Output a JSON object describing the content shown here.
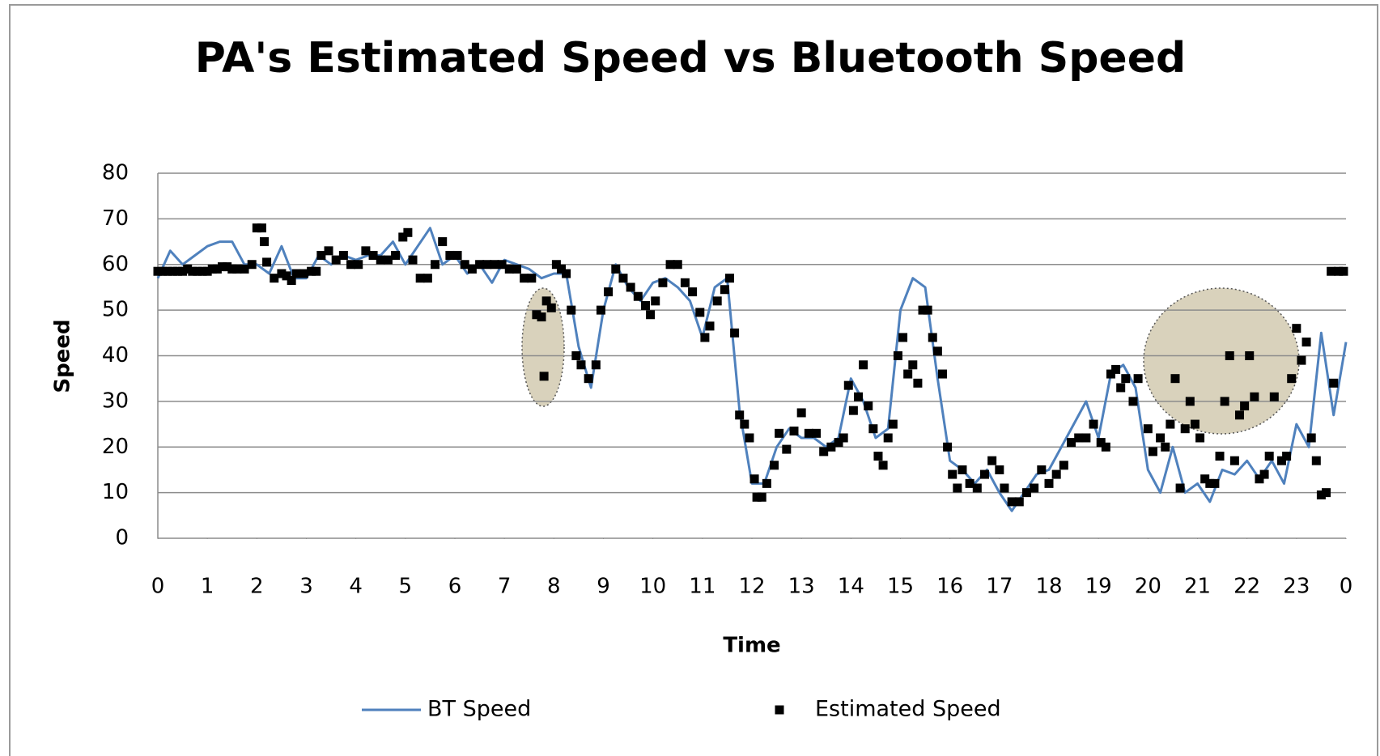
{
  "chart_data": {
    "type": "line",
    "title": "PA's Estimated Speed vs Bluetooth Speed",
    "x_label": "Time",
    "y_label": "Speed",
    "xlim": [
      0,
      24
    ],
    "xticks": [
      0,
      1,
      2,
      3,
      4,
      5,
      6,
      7,
      8,
      9,
      10,
      11,
      12,
      13,
      14,
      15,
      16,
      17,
      18,
      19,
      20,
      21,
      22,
      23,
      {
        "value": 24,
        "label": "0"
      }
    ],
    "ylim": [
      0,
      80
    ],
    "yticks": [
      0,
      10,
      20,
      30,
      40,
      50,
      60,
      70,
      80
    ],
    "grid": true,
    "legend": "bottom",
    "series": [
      {
        "name": "BT Speed",
        "type": "line",
        "color": "#4f81bd",
        "x": [
          0,
          0.25,
          0.5,
          0.75,
          1,
          1.25,
          1.5,
          1.75,
          2,
          2.25,
          2.5,
          2.75,
          3,
          3.25,
          3.5,
          3.75,
          4,
          4.25,
          4.5,
          4.75,
          5,
          5.25,
          5.5,
          5.75,
          6,
          6.25,
          6.5,
          6.75,
          7,
          7.25,
          7.5,
          7.75,
          8,
          8.25,
          8.5,
          8.75,
          9,
          9.25,
          9.5,
          9.75,
          10,
          10.25,
          10.5,
          10.75,
          11,
          11.25,
          11.5,
          11.75,
          12,
          12.25,
          12.5,
          12.75,
          13,
          13.25,
          13.5,
          13.75,
          14,
          14.25,
          14.5,
          14.75,
          15,
          15.25,
          15.5,
          15.75,
          16,
          16.25,
          16.5,
          16.75,
          17,
          17.25,
          17.5,
          17.75,
          18,
          18.25,
          18.5,
          18.75,
          19,
          19.25,
          19.5,
          19.75,
          20,
          20.25,
          20.5,
          20.75,
          21,
          21.25,
          21.5,
          21.75,
          22,
          22.25,
          22.5,
          22.75,
          23,
          23.25,
          23.5,
          23.75,
          24
        ],
        "values": [
          57,
          63,
          60,
          62,
          64,
          65,
          65,
          60,
          60,
          58,
          64,
          57,
          57,
          62,
          60,
          62,
          61,
          62,
          62,
          65,
          60,
          64,
          68,
          60,
          62,
          58,
          60,
          56,
          61,
          60,
          59,
          57,
          58,
          58,
          42,
          33,
          50,
          60,
          55,
          52,
          56,
          57,
          55,
          52,
          44,
          55,
          57,
          28,
          12,
          12,
          20,
          24,
          22,
          22,
          20,
          22,
          35,
          30,
          22,
          24,
          50,
          57,
          55,
          35,
          17,
          15,
          12,
          15,
          10,
          6,
          10,
          14,
          15,
          20,
          25,
          30,
          22,
          36,
          38,
          33,
          15,
          10,
          20,
          10,
          12,
          8,
          15,
          14,
          17,
          13,
          17,
          12,
          25,
          20,
          45,
          27,
          43
        ]
      },
      {
        "name": "Estimated Speed",
        "type": "scatter",
        "color": "#000000",
        "x": [
          0,
          0.1,
          0.2,
          0.3,
          0.4,
          0.5,
          0.6,
          0.7,
          0.8,
          0.9,
          1.0,
          1.1,
          1.2,
          1.3,
          1.4,
          1.5,
          1.6,
          1.75,
          1.9,
          2.0,
          2.1,
          2.15,
          2.2,
          2.35,
          2.5,
          2.6,
          2.7,
          2.8,
          2.95,
          3.1,
          3.2,
          3.3,
          3.45,
          3.6,
          3.75,
          3.9,
          4.05,
          4.2,
          4.35,
          4.5,
          4.65,
          4.8,
          4.95,
          5.05,
          5.15,
          5.3,
          5.45,
          5.6,
          5.75,
          5.9,
          6.05,
          6.2,
          6.35,
          6.5,
          6.65,
          6.8,
          6.95,
          7.1,
          7.25,
          7.4,
          7.55,
          7.65,
          7.75,
          7.8,
          7.85,
          7.95,
          8.05,
          8.15,
          8.25,
          8.35,
          8.45,
          8.55,
          8.7,
          8.85,
          8.95,
          9.1,
          9.25,
          9.4,
          9.55,
          9.7,
          9.85,
          9.95,
          10.05,
          10.2,
          10.35,
          10.5,
          10.65,
          10.8,
          10.95,
          11.05,
          11.15,
          11.3,
          11.45,
          11.55,
          11.65,
          11.75,
          11.85,
          11.95,
          12.05,
          12.1,
          12.2,
          12.3,
          12.45,
          12.55,
          12.7,
          12.85,
          13.0,
          13.15,
          13.3,
          13.45,
          13.6,
          13.75,
          13.85,
          13.95,
          14.05,
          14.15,
          14.25,
          14.35,
          14.45,
          14.55,
          14.65,
          14.75,
          14.85,
          14.95,
          15.05,
          15.15,
          15.25,
          15.35,
          15.45,
          15.55,
          15.65,
          15.75,
          15.85,
          15.95,
          16.05,
          16.15,
          16.25,
          16.4,
          16.55,
          16.7,
          16.85,
          17.0,
          17.1,
          17.25,
          17.4,
          17.55,
          17.7,
          17.85,
          18.0,
          18.15,
          18.3,
          18.45,
          18.6,
          18.75,
          18.9,
          19.05,
          19.15,
          19.25,
          19.35,
          19.45,
          19.55,
          19.7,
          19.8,
          20.0,
          20.1,
          20.25,
          20.35,
          20.45,
          20.55,
          20.65,
          20.75,
          20.85,
          20.95,
          21.05,
          21.15,
          21.25,
          21.35,
          21.45,
          21.55,
          21.65,
          21.75,
          21.85,
          21.95,
          22.05,
          22.15,
          22.25,
          22.35,
          22.45,
          22.55,
          22.7,
          22.8,
          22.9,
          23.0,
          23.1,
          23.2,
          23.3,
          23.4,
          23.5,
          23.6,
          23.7,
          23.75,
          23.85,
          23.95
        ],
        "values": [
          58.5,
          58.5,
          58.5,
          58.5,
          58.5,
          58.5,
          59,
          58.5,
          58.5,
          58.5,
          58.5,
          59,
          59,
          59.5,
          59.5,
          59,
          59,
          59,
          60,
          68,
          68,
          65,
          60.5,
          57,
          58,
          57.5,
          56.5,
          58,
          58,
          58.5,
          58.5,
          62,
          63,
          61,
          62,
          60,
          60,
          63,
          62,
          61,
          61,
          62,
          66,
          67,
          61,
          57,
          57,
          60,
          65,
          62,
          62,
          60,
          59,
          60,
          60,
          60,
          60,
          59,
          59,
          57,
          57,
          49,
          48.5,
          35.5,
          52,
          50.5,
          60,
          59,
          58,
          50,
          40,
          38,
          35,
          38,
          50,
          54,
          59,
          57,
          55,
          53,
          51,
          49,
          52,
          56,
          60,
          60,
          56,
          54,
          49.5,
          44,
          46.5,
          52,
          54.5,
          57,
          45,
          27,
          25,
          22,
          13,
          9,
          9,
          12,
          16,
          23,
          19.5,
          23.5,
          27.5,
          23,
          23,
          19,
          20,
          21,
          22,
          33.5,
          28,
          31,
          38,
          29,
          24,
          18,
          16,
          22,
          25,
          40,
          44,
          36,
          38,
          34,
          50,
          50,
          44,
          41,
          36,
          20,
          14,
          11,
          15,
          12,
          11,
          14,
          17,
          15,
          11,
          8,
          8,
          10,
          11,
          15,
          12,
          14,
          16,
          21,
          22,
          22,
          25,
          21,
          20,
          36,
          37,
          33,
          35,
          30,
          35,
          24,
          19,
          22,
          20,
          25,
          35,
          11,
          24,
          30,
          25,
          22,
          13,
          12,
          12,
          18,
          30,
          40,
          17,
          27,
          29,
          40,
          31,
          13,
          14,
          18,
          31,
          17,
          18,
          35,
          46,
          39,
          43,
          22,
          17,
          9.5,
          10,
          58.5,
          34,
          58.5,
          58.5
        ]
      }
    ]
  }
}
